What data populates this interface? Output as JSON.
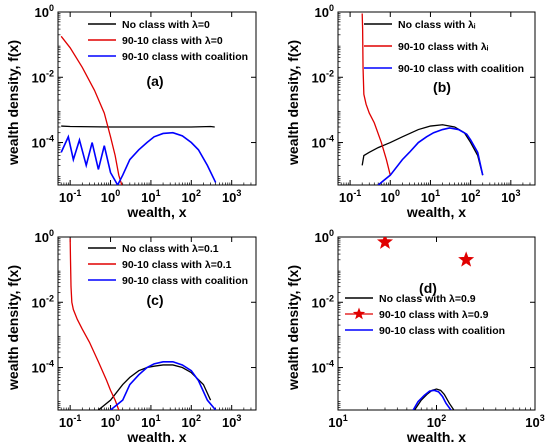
{
  "chart_data": [
    {
      "type": "line",
      "panel_label": "(a)",
      "xlabel": "wealth, x",
      "ylabel": "wealth density, f(x)",
      "xscale": "log",
      "yscale": "log",
      "xlim": [
        0.05,
        4000
      ],
      "ylim": [
        5e-06,
        1
      ],
      "xticks": [
        {
          "value": 0.1,
          "label": "10",
          "exp": "-1"
        },
        {
          "value": 1,
          "label": "10",
          "exp": "0"
        },
        {
          "value": 10,
          "label": "10",
          "exp": "1"
        },
        {
          "value": 100,
          "label": "10",
          "exp": "2"
        },
        {
          "value": 1000,
          "label": "10",
          "exp": "3"
        }
      ],
      "yticks": [
        {
          "value": 1,
          "label": "10",
          "exp": "0"
        },
        {
          "value": 0.01,
          "label": "10",
          "exp": "-2"
        },
        {
          "value": 0.0001,
          "label": "10",
          "exp": "-4"
        }
      ],
      "legend_position": "top-right",
      "series": [
        {
          "name": "No class with λ=0",
          "color": "#000000",
          "style": "line",
          "x": [
            0.06,
            0.1,
            1,
            10,
            100,
            300,
            380
          ],
          "y": [
            0.00032,
            0.00031,
            0.0003,
            0.0003,
            0.0003,
            0.00031,
            0.0003
          ]
        },
        {
          "name": "90-10 class with λ=0",
          "color": "#e00000",
          "style": "line",
          "x": [
            0.06,
            0.1,
            0.2,
            0.4,
            0.7,
            1.0,
            1.3,
            1.6,
            1.9
          ],
          "y": [
            0.18,
            0.08,
            0.02,
            0.004,
            0.0008,
            0.00015,
            4e-05,
            1e-05,
            5e-06
          ]
        },
        {
          "name": "90-10 class with coalition",
          "color": "#0000ff",
          "style": "line",
          "x": [
            0.06,
            0.09,
            0.12,
            0.17,
            0.25,
            0.35,
            0.5,
            0.7,
            1.0,
            1.5,
            2,
            3,
            5,
            8,
            12,
            20,
            35,
            60,
            100,
            150,
            250,
            400
          ],
          "y": [
            5e-05,
            0.00015,
            3e-05,
            0.00012,
            2e-05,
            0.0001,
            1.5e-05,
            8e-05,
            1.2e-05,
            5e-06,
            1e-05,
            3e-05,
            6e-05,
            0.0001,
            0.00015,
            0.00019,
            0.0002,
            0.00016,
            0.0001,
            6e-05,
            2e-05,
            6e-06
          ]
        }
      ]
    },
    {
      "type": "line",
      "panel_label": "(b)",
      "xlabel": "wealth, x",
      "ylabel": "wealth density, f(x)",
      "xscale": "log",
      "yscale": "log",
      "xlim": [
        0.05,
        4000
      ],
      "ylim": [
        5e-06,
        1
      ],
      "xticks": [
        {
          "value": 0.1,
          "label": "10",
          "exp": "-1"
        },
        {
          "value": 1,
          "label": "10",
          "exp": "0"
        },
        {
          "value": 10,
          "label": "10",
          "exp": "1"
        },
        {
          "value": 100,
          "label": "10",
          "exp": "2"
        },
        {
          "value": 1000,
          "label": "10",
          "exp": "3"
        }
      ],
      "yticks": [
        {
          "value": 1,
          "label": "10",
          "exp": "0"
        },
        {
          "value": 0.01,
          "label": "10",
          "exp": "-2"
        },
        {
          "value": 0.0001,
          "label": "10",
          "exp": "-4"
        }
      ],
      "legend_position": "top-right",
      "series": [
        {
          "name": "No class with λᵢ",
          "color": "#000000",
          "style": "line",
          "x": [
            0.2,
            0.22,
            0.3,
            0.5,
            1,
            2,
            5,
            10,
            20,
            40,
            70,
            100,
            150,
            200
          ],
          "y": [
            2e-05,
            4e-05,
            5e-05,
            7e-05,
            0.0001,
            0.00015,
            0.00025,
            0.00032,
            0.00035,
            0.0003,
            0.0002,
            0.0001,
            4e-05,
            1e-05
          ]
        },
        {
          "name": "90-10 class with λᵢ",
          "color": "#e00000",
          "style": "line",
          "x": [
            0.2,
            0.205,
            0.21,
            0.22,
            0.25,
            0.3,
            0.4,
            0.6,
            0.8,
            1.0
          ],
          "y": [
            0.9,
            0.3,
            0.02,
            0.003,
            0.0015,
            0.0008,
            0.0004,
            0.0001,
            3e-05,
            1e-05
          ]
        },
        {
          "name": "90-10 class with coalition",
          "color": "#0000ff",
          "style": "line",
          "x": [
            0.5,
            1,
            2,
            3,
            5,
            8,
            12,
            20,
            30,
            50,
            80,
            100,
            150,
            200
          ],
          "y": [
            5e-06,
            1e-05,
            3e-05,
            5e-05,
            0.0001,
            0.00015,
            0.0002,
            0.00025,
            0.00028,
            0.00025,
            0.00018,
            0.00012,
            5e-05,
            1e-05
          ]
        }
      ]
    },
    {
      "type": "line",
      "panel_label": "(c)",
      "xlabel": "wealth, x",
      "ylabel": "wealth density, f(x)",
      "xscale": "log",
      "yscale": "log",
      "xlim": [
        0.05,
        4000
      ],
      "ylim": [
        5e-06,
        1
      ],
      "xticks": [
        {
          "value": 0.1,
          "label": "10",
          "exp": "-1"
        },
        {
          "value": 1,
          "label": "10",
          "exp": "0"
        },
        {
          "value": 10,
          "label": "10",
          "exp": "1"
        },
        {
          "value": 100,
          "label": "10",
          "exp": "2"
        },
        {
          "value": 1000,
          "label": "10",
          "exp": "3"
        }
      ],
      "yticks": [
        {
          "value": 1,
          "label": "10",
          "exp": "0"
        },
        {
          "value": 0.01,
          "label": "10",
          "exp": "-2"
        },
        {
          "value": 0.0001,
          "label": "10",
          "exp": "-4"
        }
      ],
      "legend_position": "top-right",
      "series": [
        {
          "name": "No class with λ=0.1",
          "color": "#000000",
          "style": "line",
          "x": [
            0.5,
            1,
            2,
            3,
            5,
            8,
            12,
            20,
            35,
            60,
            100,
            200,
            300
          ],
          "y": [
            5e-06,
            1e-05,
            3e-05,
            5e-05,
            8e-05,
            0.0001,
            0.00011,
            0.00012,
            0.00012,
            0.0001,
            7e-05,
            3e-05,
            1e-05
          ]
        },
        {
          "name": "90-10 class with λ=0.1",
          "color": "#e00000",
          "style": "line",
          "x": [
            0.1,
            0.102,
            0.105,
            0.11,
            0.12,
            0.15,
            0.2,
            0.3,
            0.5,
            0.8,
            1.0,
            1.3,
            1.6
          ],
          "y": [
            0.9,
            0.2,
            0.03,
            0.01,
            0.006,
            0.003,
            0.0015,
            0.0006,
            0.00015,
            4e-05,
            2e-05,
            1e-05,
            5e-06
          ]
        },
        {
          "name": "90-10 class with coalition",
          "color": "#0000ff",
          "style": "line",
          "x": [
            1,
            2,
            3,
            5,
            8,
            12,
            20,
            35,
            60,
            100,
            150,
            250,
            400
          ],
          "y": [
            5e-06,
            1e-05,
            3e-05,
            6e-05,
            0.0001,
            0.00013,
            0.00015,
            0.00015,
            0.00012,
            8e-05,
            4e-05,
            1e-05,
            5e-06
          ]
        }
      ]
    },
    {
      "type": "line",
      "panel_label": "(d)",
      "xlabel": "wealth, x",
      "ylabel": "wealth density, f(x)",
      "xscale": "log",
      "yscale": "log",
      "xlim": [
        10,
        1000
      ],
      "ylim": [
        5e-06,
        1
      ],
      "xticks": [
        {
          "value": 10,
          "label": "10",
          "exp": "1"
        },
        {
          "value": 100,
          "label": "10",
          "exp": "2"
        },
        {
          "value": 1000,
          "label": "10",
          "exp": "3"
        }
      ],
      "yticks": [
        {
          "value": 1,
          "label": "10",
          "exp": "0"
        },
        {
          "value": 0.01,
          "label": "10",
          "exp": "-2"
        },
        {
          "value": 0.0001,
          "label": "10",
          "exp": "-4"
        }
      ],
      "legend_position": "middle-right",
      "series": [
        {
          "name": "No class with λ=0.9",
          "color": "#000000",
          "style": "line",
          "x": [
            60,
            70,
            80,
            90,
            100,
            110,
            120,
            135,
            150
          ],
          "y": [
            5e-06,
            1e-05,
            1.5e-05,
            2e-05,
            2.2e-05,
            2e-05,
            1.5e-05,
            8e-06,
            5e-06
          ]
        },
        {
          "name": "90-10 class with λ=0.9",
          "color": "#e00000",
          "style": "marker",
          "x": [
            30,
            200
          ],
          "y": [
            0.7,
            0.2
          ]
        },
        {
          "name": "90-10 class with coalition",
          "color": "#0000ff",
          "style": "line",
          "x": [
            58,
            65,
            75,
            85,
            95,
            105,
            115,
            125,
            140
          ],
          "y": [
            5e-06,
            9e-06,
            1.4e-05,
            1.9e-05,
            2e-05,
            1.8e-05,
            1.3e-05,
            8e-06,
            5e-06
          ]
        }
      ]
    }
  ]
}
